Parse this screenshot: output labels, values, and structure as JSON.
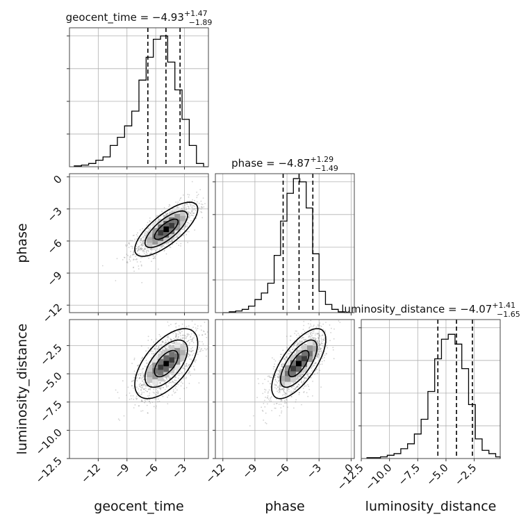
{
  "chart_data": {
    "type": "corner",
    "parameters": [
      {
        "name": "geocent_time",
        "label": "geocent_time",
        "title": {
          "text": "geocent_time = −4.93",
          "sup": "+1.47",
          "sub": "−1.89"
        },
        "median": -4.93,
        "q_low": -6.82,
        "q_high": -3.46,
        "range": [
          -15,
          -0.5
        ],
        "ticks": [
          -12,
          -9,
          -6,
          -3
        ],
        "tick_labels": [
          "−12",
          "−9",
          "−6",
          "−3"
        ],
        "hist_bins": [
          -14.5,
          -13.75,
          -13.0,
          -12.25,
          -11.5,
          -10.75,
          -10.0,
          -9.25,
          -8.5,
          -7.75,
          -7.0,
          -6.25,
          -5.5,
          -4.75,
          -4.0,
          -3.25,
          -2.5,
          -1.75,
          -1.0,
          -0.25
        ],
        "hist_values": [
          0.005,
          0.01,
          0.02,
          0.04,
          0.06,
          0.13,
          0.18,
          0.25,
          0.34,
          0.53,
          0.67,
          0.78,
          0.8,
          0.64,
          0.47,
          0.29,
          0.13,
          0.02,
          0.0
        ]
      },
      {
        "name": "phase",
        "label": "phase",
        "title": {
          "text": "phase = −4.87",
          "sup": "+1.29",
          "sub": "−1.49"
        },
        "median": -4.87,
        "q_low": -6.36,
        "q_high": -3.58,
        "range": [
          -12.7,
          0.3
        ],
        "ticks": [
          -12,
          -9,
          -6,
          -3,
          0
        ],
        "tick_labels": [
          "−12",
          "−9",
          "−6",
          "−3",
          "0"
        ],
        "hist_bins": [
          -12.0,
          -11.4,
          -10.8,
          -10.2,
          -9.6,
          -9.0,
          -8.4,
          -7.8,
          -7.2,
          -6.6,
          -6.0,
          -5.4,
          -4.8,
          -4.2,
          -3.6,
          -3.0,
          -2.4,
          -1.8,
          -1.2,
          -0.6,
          0.0
        ],
        "hist_values": [
          0.0,
          0.005,
          0.01,
          0.02,
          0.04,
          0.08,
          0.12,
          0.18,
          0.35,
          0.56,
          0.73,
          0.82,
          0.8,
          0.64,
          0.36,
          0.13,
          0.05,
          0.02,
          0.005,
          0.0
        ]
      },
      {
        "name": "luminosity_distance",
        "label": "luminosity_distance",
        "title": {
          "text": "luminosity_distance = −4.07",
          "sup": "+1.41",
          "sub": "−1.65"
        },
        "median": -4.07,
        "q_low": -5.72,
        "q_high": -2.66,
        "range": [
          -12.5,
          -0.2
        ],
        "ticks": [
          -12.5,
          -10.0,
          -7.5,
          -5.0,
          -2.5
        ],
        "tick_labels": [
          "−12.5",
          "−10.0",
          "−7.5",
          "−5.0",
          "−2.5"
        ],
        "hist_bins": [
          -12.0,
          -11.4,
          -10.8,
          -10.2,
          -9.6,
          -9.0,
          -8.4,
          -7.8,
          -7.2,
          -6.6,
          -6.0,
          -5.4,
          -4.8,
          -4.2,
          -3.6,
          -3.0,
          -2.4,
          -1.8,
          -1.2,
          -0.6,
          -0.2
        ],
        "hist_values": [
          0.005,
          0.005,
          0.01,
          0.02,
          0.03,
          0.06,
          0.09,
          0.15,
          0.24,
          0.41,
          0.61,
          0.73,
          0.76,
          0.7,
          0.55,
          0.33,
          0.12,
          0.05,
          0.03,
          0.01
        ]
      }
    ],
    "pairs": [
      {
        "x": "geocent_time",
        "y": "phase",
        "mean": [
          -4.9,
          -4.9
        ],
        "cov": [
          [
            2.7,
            1.55
          ],
          [
            1.55,
            1.6
          ]
        ]
      },
      {
        "x": "geocent_time",
        "y": "luminosity_distance",
        "mean": [
          -4.9,
          -4.1
        ],
        "cov": [
          [
            2.7,
            1.5
          ],
          [
            1.5,
            2.4
          ]
        ]
      },
      {
        "x": "phase",
        "y": "luminosity_distance",
        "mean": [
          -4.9,
          -4.1
        ],
        "cov": [
          [
            1.6,
            1.35
          ],
          [
            1.35,
            2.4
          ]
        ]
      }
    ],
    "quantiles": [
      0.16,
      0.5,
      0.84
    ],
    "grid": true
  }
}
